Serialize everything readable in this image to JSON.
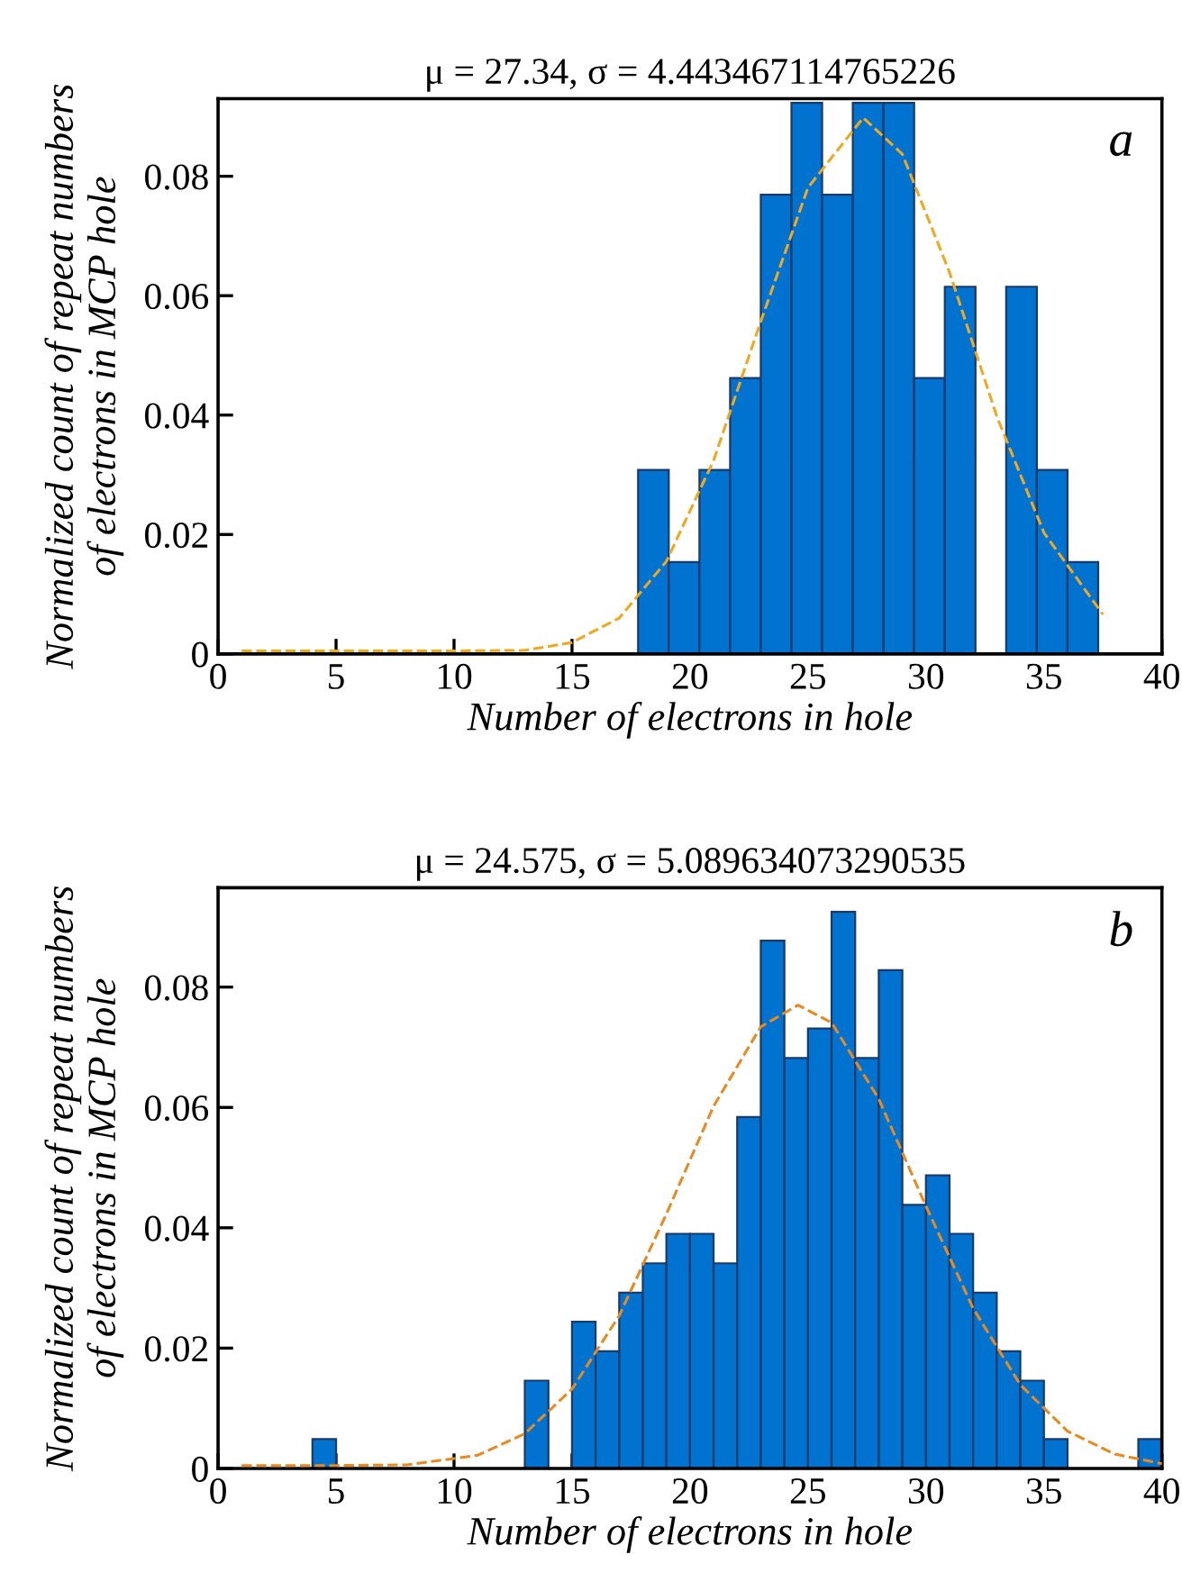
{
  "chart_data": [
    {
      "type": "histogram",
      "title": "μ = 27.34, σ = 4.443467114765226",
      "xlabel": "Number of electrons in hole",
      "ylabel": "Normalized count of repeat numbers\nof electrons in MCP hole",
      "annotations": [
        "a"
      ],
      "series": [
        {
          "color": "#0072cf",
          "bins": [
            17.8,
            19.1,
            20.4,
            21.7,
            23.0,
            24.3,
            25.6,
            26.9,
            28.2,
            29.5,
            30.8,
            32.1,
            33.4,
            34.7,
            36.0,
            37.3
          ],
          "values": [
            0.0308,
            0.0154,
            0.0308,
            0.0462,
            0.0769,
            0.0923,
            0.0769,
            0.0923,
            0.0923,
            0.0462,
            0.0615,
            0,
            0.0615,
            0.0308,
            0.0154
          ]
        },
        {
          "type": "line",
          "color": "#f2a81d",
          "line_style": "dashed",
          "x": [
            1,
            5,
            10,
            13,
            15,
            17,
            19,
            21,
            23,
            25,
            27.34,
            29,
            31,
            33,
            35,
            37.5
          ],
          "values": [
            0.0005,
            0.0005,
            0.0005,
            0.0006,
            0.0019,
            0.006,
            0.0155,
            0.0324,
            0.0557,
            0.0781,
            0.0898,
            0.0837,
            0.0639,
            0.0398,
            0.0203,
            0.0066
          ]
        }
      ],
      "xlim": [
        0,
        40
      ],
      "xticks": [
        0,
        5,
        10,
        15,
        20,
        25,
        30,
        35,
        40
      ],
      "ylim": [
        0,
        0.093
      ],
      "yticks": [
        0,
        0.02,
        0.04,
        0.06,
        0.08
      ],
      "grid": false,
      "legend": false
    },
    {
      "type": "histogram",
      "title": "μ = 24.575, σ = 5.089634073290535",
      "xlabel": "Number of electrons in hole",
      "ylabel": "Normalized count of repeat numbers\nof electrons in MCP hole",
      "annotations": [
        "b"
      ],
      "series": [
        {
          "color": "#0072cf",
          "bins": [
            4,
            5,
            6,
            7,
            8,
            9,
            10,
            11,
            12,
            13,
            14,
            15,
            16,
            17,
            18,
            19,
            20,
            21,
            22,
            23,
            24,
            25,
            26,
            27,
            28,
            29,
            30,
            31,
            32,
            33,
            34,
            35,
            36,
            37,
            38,
            39,
            40
          ],
          "values": [
            0.0049,
            0,
            0,
            0,
            0,
            0,
            0,
            0,
            0,
            0.0146,
            0,
            0.0244,
            0.0195,
            0.0292,
            0.0341,
            0.039,
            0.039,
            0.0341,
            0.0584,
            0.0877,
            0.0682,
            0.0731,
            0.0925,
            0.0682,
            0.0828,
            0.0438,
            0.0487,
            0.039,
            0.0292,
            0.0195,
            0.0146,
            0.0049,
            0,
            0,
            0,
            0.0049
          ]
        },
        {
          "type": "line",
          "color": "#ea8a1e",
          "line_style": "dashed",
          "x": [
            1,
            5,
            8,
            11,
            13,
            15,
            17,
            19,
            21,
            23,
            24.575,
            26,
            28,
            30,
            32,
            34,
            36,
            38,
            40
          ],
          "values": [
            0.0005,
            0.0005,
            0.0006,
            0.0022,
            0.0058,
            0.0132,
            0.0254,
            0.0423,
            0.0602,
            0.0734,
            0.077,
            0.0741,
            0.0614,
            0.0436,
            0.0266,
            0.0139,
            0.0062,
            0.0024,
            0.0008
          ]
        }
      ],
      "xlim": [
        0,
        40
      ],
      "xticks": [
        0,
        5,
        10,
        15,
        20,
        25,
        30,
        35,
        40
      ],
      "ylim": [
        0,
        0.0965
      ],
      "yticks": [
        0,
        0.02,
        0.04,
        0.06,
        0.08
      ],
      "grid": false,
      "legend": false
    }
  ]
}
